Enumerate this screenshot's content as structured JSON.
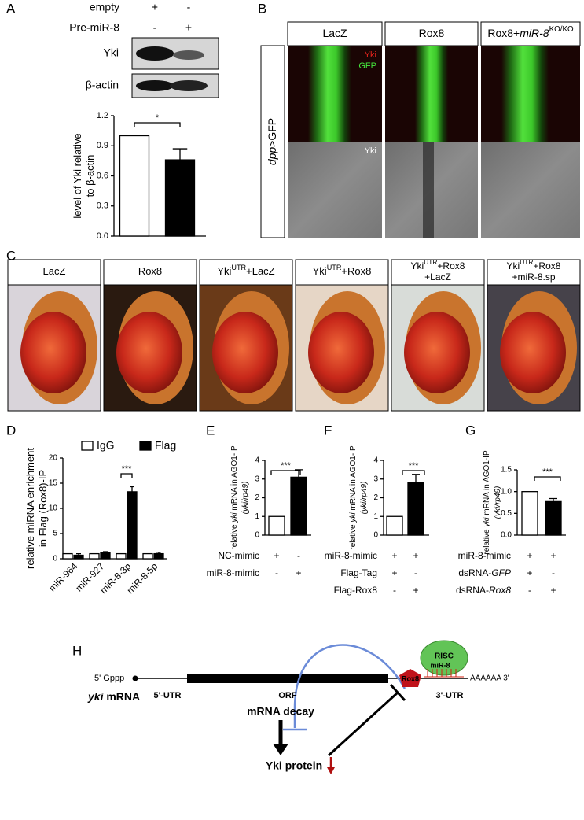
{
  "panel_labels": [
    "A",
    "B",
    "C",
    "D",
    "E",
    "F",
    "G",
    "H"
  ],
  "blot": {
    "rows": [
      {
        "label": "empty",
        "signs": [
          "+",
          "-"
        ]
      },
      {
        "label": "Pre-miR-8",
        "signs": [
          "-",
          "+"
        ]
      }
    ],
    "bands": [
      "Yki",
      "β-actin"
    ]
  },
  "imaging": {
    "columns": [
      [
        [
          "LacZ"
        ]
      ],
      [
        [
          "Rox8"
        ]
      ],
      [
        [
          "Rox8+",
          {
            "text": "miR-8",
            "style": "italic"
          },
          {
            "text": "KO/KO",
            "style": "sup"
          }
        ]
      ]
    ],
    "row_label": [
      [
        {
          "text": "dpp",
          "style": "italic"
        },
        ">GFP"
      ]
    ],
    "channel_labels": [
      {
        "text": "Yki",
        "color": "#e8231c"
      },
      {
        "text": "GFP",
        "color": "#46e63c"
      }
    ],
    "gray_label": {
      "text": "Yki",
      "color": "#ffffff"
    }
  },
  "eyes": {
    "columns": [
      [
        [
          "LacZ"
        ]
      ],
      [
        [
          "Rox8"
        ]
      ],
      [
        [
          "Yki",
          {
            "text": "UTR",
            "style": "sup"
          },
          "+LacZ"
        ]
      ],
      [
        [
          "Yki",
          {
            "text": "UTR",
            "style": "sup"
          },
          "+Rox8"
        ]
      ],
      [
        [
          "Yki",
          {
            "text": "UTR",
            "style": "sup"
          },
          "+Rox8"
        ],
        [
          "+LacZ"
        ]
      ],
      [
        [
          "Yki",
          {
            "text": "UTR",
            "style": "sup"
          },
          "+Rox8"
        ],
        [
          "+miR-8.sp"
        ]
      ]
    ]
  },
  "chart_data": [
    {
      "type": "bar",
      "ylabel": [
        [
          "level of Yki relative"
        ],
        [
          "to β-actin"
        ]
      ],
      "values": [
        1.0,
        0.76
      ],
      "errors": [
        null,
        0.11
      ],
      "colors": [
        "#ffffff",
        "#000000"
      ],
      "ylim": [
        0,
        1.2
      ],
      "yticks": [
        {
          "value": 0,
          "label": "0.0"
        },
        0.3,
        0.6,
        0.9,
        1.2
      ],
      "significance": "*"
    },
    {
      "type": "grouped-bar",
      "ylabel": [
        [
          "relative miRNA enrichment"
        ],
        [
          "in Flag (Rox8)-IP"
        ]
      ],
      "categories": [
        "miR-964",
        "miR-927",
        "miR-8-3p",
        "miR-8-5p"
      ],
      "series": [
        {
          "name": "IgG",
          "color": "#ffffff",
          "values": [
            1,
            1,
            1,
            1
          ],
          "errors": [
            null,
            null,
            null,
            null
          ]
        },
        {
          "name": "Flag",
          "color": "#000000",
          "values": [
            0.7,
            1.2,
            13.3,
            1.0
          ],
          "errors": [
            0.3,
            0.2,
            1.0,
            0.3
          ]
        }
      ],
      "ylim": [
        0,
        20
      ],
      "yticks": [
        0,
        5,
        10,
        15,
        20
      ],
      "significance": "***"
    },
    {
      "type": "bar",
      "ylabel": [
        [
          "relative ",
          {
            "text": "yki",
            "style": "italic"
          },
          " mRNA in AGO1-IP"
        ],
        [
          {
            "text": "(yki/rp49)",
            "style": "italic"
          }
        ]
      ],
      "values": [
        1,
        3.1
      ],
      "errors": [
        null,
        0.4
      ],
      "colors": [
        "#ffffff",
        "#000000"
      ],
      "ylim": [
        0,
        4
      ],
      "yticks": [
        0,
        1,
        2,
        3,
        4
      ],
      "significance": "***",
      "conditions": [
        {
          "label": "NC-mimic",
          "signs": [
            "+",
            "-"
          ]
        },
        {
          "label": "miR-8-mimic",
          "signs": [
            "-",
            "+"
          ]
        }
      ]
    },
    {
      "type": "bar",
      "ylabel": [
        [
          "relative ",
          {
            "text": "yki",
            "style": "italic"
          },
          " mRNA in AGO1-IP"
        ],
        [
          {
            "text": "(yki/rp49)",
            "style": "italic"
          }
        ]
      ],
      "values": [
        1,
        2.8
      ],
      "errors": [
        null,
        0.45
      ],
      "colors": [
        "#ffffff",
        "#000000"
      ],
      "ylim": [
        0,
        4
      ],
      "yticks": [
        0,
        1,
        2,
        3,
        4
      ],
      "significance": "***",
      "conditions": [
        {
          "label": "miR-8-mimic",
          "signs": [
            "+",
            "+"
          ]
        },
        {
          "label": "Flag-Tag",
          "signs": [
            "+",
            "-"
          ]
        },
        {
          "label": "Flag-Rox8",
          "signs": [
            "-",
            "+"
          ]
        }
      ]
    },
    {
      "type": "bar",
      "ylabel": [
        [
          "relative ",
          {
            "text": "yki",
            "style": "italic"
          },
          " mRNA in AGO1-IP"
        ],
        [
          {
            "text": "(yki/rp49)",
            "style": "italic"
          }
        ]
      ],
      "values": [
        1,
        0.77
      ],
      "errors": [
        null,
        0.07
      ],
      "colors": [
        "#ffffff",
        "#000000"
      ],
      "ylim": [
        0,
        1.5
      ],
      "yticks": [
        {
          "value": 0,
          "label": "0.0"
        },
        0.5,
        {
          "value": 1,
          "label": "1.0"
        },
        1.5
      ],
      "significance": "***",
      "conditions": [
        {
          "label": "miR-8-mimic",
          "signs": [
            "+",
            "+"
          ]
        },
        {
          "label": [
            "dsRNA-",
            {
              "text": "GFP",
              "style": "italic"
            }
          ],
          "signs": [
            "+",
            "-"
          ]
        },
        {
          "label": [
            "dsRNA-",
            {
              "text": "Rox8",
              "style": "italic"
            }
          ],
          "signs": [
            "-",
            "+"
          ]
        }
      ]
    }
  ],
  "diagram": {
    "title": [
      [
        {
          "text": "yki",
          "style": "italic"
        },
        " mRNA"
      ]
    ],
    "cap": "5' Gppp",
    "regions": [
      "5'-UTR",
      "ORF",
      "3'-UTR"
    ],
    "poly_a": "AAAAAA 3'",
    "risc": "RISC",
    "mirna": "miR-8",
    "rbp": "Rox8",
    "decay": "mRNA decay",
    "protein": "Yki protein"
  }
}
